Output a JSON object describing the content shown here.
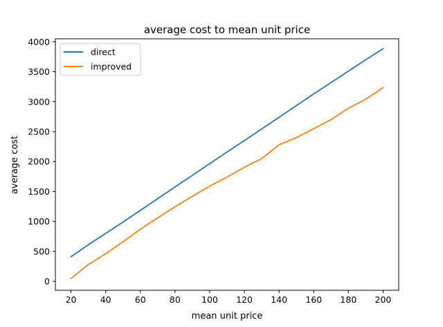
{
  "chart_data": {
    "type": "line",
    "title": "average cost to mean unit price",
    "xlabel": "mean unit price",
    "ylabel": "average cost",
    "x": [
      20,
      30,
      40,
      50,
      60,
      70,
      80,
      90,
      100,
      110,
      120,
      130,
      140,
      150,
      160,
      170,
      180,
      190,
      200
    ],
    "x_ticks": [
      20,
      40,
      60,
      80,
      100,
      120,
      140,
      160,
      180,
      200
    ],
    "y_ticks": [
      0,
      500,
      1000,
      1500,
      2000,
      2500,
      3000,
      3500,
      4000
    ],
    "xlim": [
      11,
      209
    ],
    "ylim": [
      -150,
      4050
    ],
    "grid": false,
    "legend_position": "top-left",
    "series": [
      {
        "name": "direct",
        "color": "#1f77b4",
        "values": [
          410,
          610,
          800,
          990,
          1185,
          1380,
          1575,
          1770,
          1965,
          2160,
          2350,
          2545,
          2740,
          2935,
          3130,
          3320,
          3510,
          3700,
          3885
        ]
      },
      {
        "name": "improved",
        "color": "#ff7f0e",
        "values": [
          45,
          280,
          460,
          660,
          870,
          1060,
          1245,
          1420,
          1590,
          1740,
          1905,
          2050,
          2280,
          2400,
          2550,
          2700,
          2890,
          3040,
          3235
        ]
      }
    ]
  }
}
